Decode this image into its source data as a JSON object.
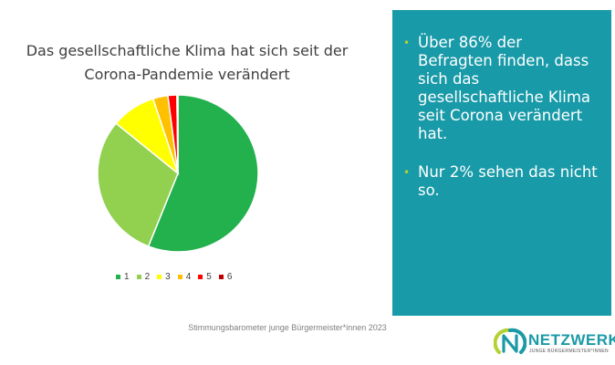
{
  "chart_data": {
    "type": "pie",
    "title": "Das gesellschaftliche Klima hat sich seit der Corona-Pandemie verändert",
    "title_lines": [
      "Das gesellschaftliche Klima hat sich seit der",
      "Corona-Pandemie verändert"
    ],
    "categories": [
      "1",
      "2",
      "3",
      "4",
      "5",
      "6"
    ],
    "values": [
      56,
      30,
      9,
      3,
      1.8,
      0.2
    ],
    "colors": [
      "#22b14c",
      "#92d050",
      "#ffff00",
      "#ffc000",
      "#ff0000",
      "#c00000"
    ],
    "legend_position": "bottom"
  },
  "panel": {
    "background": "#199aa8",
    "bullets": [
      "Über 86% der Befragten finden, dass sich das gesellschaftliche Klima seit Corona verändert hat.",
      "Nur 2% sehen das nicht so."
    ]
  },
  "footer": {
    "text": "Stimmungsbarometer junge Bürgermeister*innen 2023"
  },
  "logo": {
    "name": "NETZWERK",
    "subtitle": "JUNGE BÜRGERMEISTER*INNEN"
  }
}
